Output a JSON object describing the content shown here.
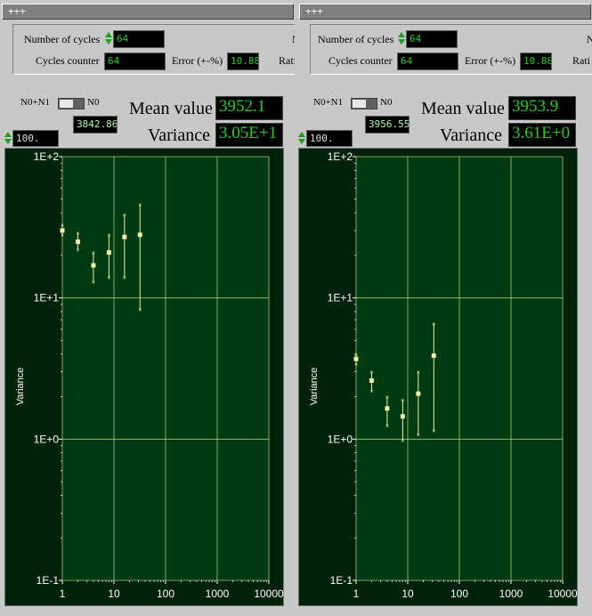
{
  "panels": [
    {
      "title": "+++",
      "n_cycles_label": "Number of cycles",
      "n_cycles_value": "64",
      "counter_label": "Cycles counter",
      "counter_value": "64",
      "error_label": "Error (+-%)",
      "error_value": "10.88",
      "ratio_label": "Rati",
      "truncated_label": "N",
      "toggle_left": "N0+N1",
      "toggle_right": "N0",
      "mean_small": "3842.86",
      "spin_value": "100.",
      "mean_label": "Mean value",
      "mean_value": "3952.1",
      "variance_label": "Variance",
      "variance_value": "3.05E+1"
    },
    {
      "title": "+++",
      "n_cycles_label": "Number of cycles",
      "n_cycles_value": "64",
      "counter_label": "Cycles counter",
      "counter_value": "64",
      "error_label": "Error (+-%)",
      "error_value": "10.88",
      "ratio_label": "Rati",
      "truncated_label": "N",
      "toggle_left": "N0+N1",
      "toggle_right": "N0",
      "mean_small": "3956.55",
      "spin_value": "100.",
      "mean_label": "Mean value",
      "mean_value": "3953.9",
      "variance_label": "Variance",
      "variance_value": "3.61E+0"
    }
  ],
  "chart_data": [
    {
      "type": "scatter",
      "ylabel": "Variance",
      "x_scale": "log",
      "y_scale": "log",
      "xlim": [
        1,
        10000
      ],
      "ylim": [
        0.1,
        100
      ],
      "x_ticks": [
        "1",
        "10",
        "100",
        "1000",
        "10000"
      ],
      "y_ticks": [
        "1E+2",
        "1E+1",
        "1E+0",
        "1E-1"
      ],
      "grid": true,
      "points": [
        {
          "x": 1,
          "y": 30,
          "lo": 28,
          "hi": 33
        },
        {
          "x": 2,
          "y": 25,
          "lo": 22,
          "hi": 29
        },
        {
          "x": 4,
          "y": 17,
          "lo": 13,
          "hi": 21
        },
        {
          "x": 8,
          "y": 21,
          "lo": 14,
          "hi": 28
        },
        {
          "x": 16,
          "y": 27,
          "lo": 14,
          "hi": 39
        },
        {
          "x": 32,
          "y": 28,
          "lo": 8.3,
          "hi": 46
        }
      ]
    },
    {
      "type": "scatter",
      "ylabel": "Variance",
      "x_scale": "log",
      "y_scale": "log",
      "xlim": [
        1,
        10000
      ],
      "ylim": [
        0.1,
        100
      ],
      "x_ticks": [
        "1",
        "10",
        "100",
        "1000",
        "10000"
      ],
      "y_ticks": [
        "1E+2",
        "1E+1",
        "1E+0",
        "1E-1"
      ],
      "grid": true,
      "points": [
        {
          "x": 1,
          "y": 3.7,
          "lo": 3.4,
          "hi": 4.0
        },
        {
          "x": 2,
          "y": 2.6,
          "lo": 2.2,
          "hi": 3.0
        },
        {
          "x": 4,
          "y": 1.65,
          "lo": 1.25,
          "hi": 2.0
        },
        {
          "x": 8,
          "y": 1.45,
          "lo": 0.98,
          "hi": 1.9
        },
        {
          "x": 16,
          "y": 2.1,
          "lo": 1.08,
          "hi": 3.0
        },
        {
          "x": 32,
          "y": 3.9,
          "lo": 1.15,
          "hi": 6.6
        }
      ]
    }
  ],
  "colors": {
    "plot_bg": "#00220a",
    "plot_area": "#003a12",
    "grid": "#a8c878",
    "marker": "#f0f0a0",
    "field_text": "#22d022"
  }
}
